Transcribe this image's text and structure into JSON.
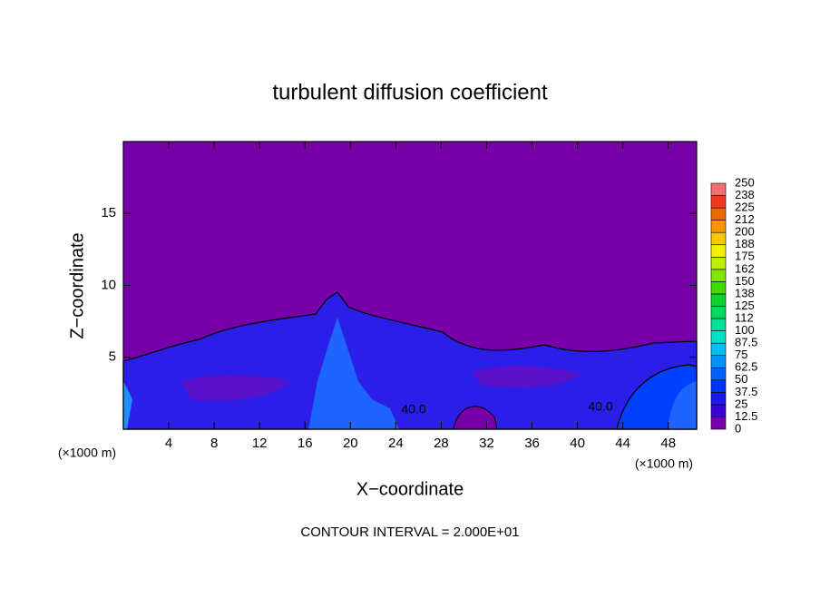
{
  "chart_data": {
    "type": "contour",
    "title": "turbulent diffusion coefficient",
    "x_label": "X−coordinate",
    "y_label": "Z−coordinate",
    "x_unit": "(×1000 m)",
    "x_unit_right": "(×1000 m)",
    "footer": "CONTOUR INTERVAL = 2.000E+01",
    "annotations": [
      "40.0",
      "40.0"
    ],
    "xlim": [
      0,
      50.5
    ],
    "xticks": [
      4,
      8,
      12,
      16,
      20,
      24,
      28,
      32,
      36,
      40,
      44,
      48
    ],
    "ylim": [
      0,
      20
    ],
    "yticks": [
      5,
      10,
      15
    ],
    "colorbar": {
      "levels": [
        0,
        12.5,
        25,
        37.5,
        50,
        62.5,
        75,
        87.5,
        100,
        112,
        125,
        138,
        150,
        162,
        175,
        188,
        200,
        212,
        225,
        238,
        250
      ],
      "colors": [
        "#7800a8",
        "#3a00d8",
        "#1818f0",
        "#0034ff",
        "#0062ff",
        "#0092ff",
        "#00c0f0",
        "#00e0c8",
        "#00e09a",
        "#00d860",
        "#10d030",
        "#40dc00",
        "#80e800",
        "#c0f000",
        "#f0f000",
        "#f8c800",
        "#f89800",
        "#f06800",
        "#f03820",
        "#f07070"
      ]
    }
  }
}
